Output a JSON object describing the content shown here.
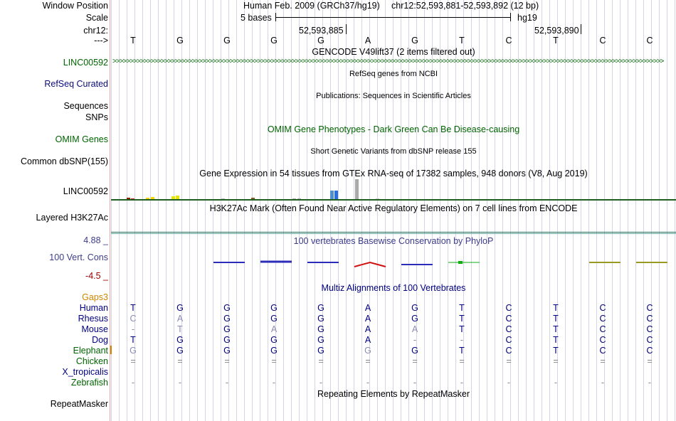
{
  "labels": {
    "window_position": "Window Position",
    "scale": "Scale",
    "chrom": "chr12:",
    "strand": "--->",
    "gencode_track": "LINC00592",
    "refseq": "RefSeq Curated",
    "sequences": "Sequences",
    "snps": "SNPs",
    "omim": "OMIM Genes",
    "dbsnp": "Common dbSNP(155)",
    "gtex": "LINC00592",
    "h3k27ac": "Layered H3K27Ac",
    "cons_max": "4.88 _",
    "cons": "100 Vert. Cons",
    "cons_min": "-4.5 _",
    "gaps": "Gaps3"
  },
  "header": {
    "assembly": "Human Feb. 2009 (GRCh37/hg19)",
    "position": "chr12:52,593,881-52,593,892 (12 bp)",
    "scale_text": "5 bases",
    "scale_db": "hg19",
    "coord1": "52,593,885",
    "coord2": "52,593,890"
  },
  "reference_bases": [
    "T",
    "G",
    "G",
    "G",
    "G",
    "A",
    "G",
    "T",
    "C",
    "T",
    "C",
    "C"
  ],
  "tracks": {
    "gencode": "GENCODE V49lift37 (2 items filtered out)",
    "refseq": "RefSeq genes from NCBI",
    "publications": "Publications: Sequences in Scientific Articles",
    "omim": "OMIM Gene Phenotypes - Dark Green Can Be Disease-causing",
    "dbsnp": "Short Genetic Variants from dbSNP release 155",
    "gtex": "Gene Expression in 54 tissues from GTEx RNA-seq of 17382 samples, 948 donors (V8, Aug 2019)",
    "h3k27ac": "H3K27Ac Mark (Often Found Near Active Regulatory Elements) on 7 cell lines from ENCODE",
    "phylop": "100 vertebrates Basewise Conservation by PhyloP",
    "multiz": "Multiz Alignments of 100 Vertebrates",
    "repeatmasker": "Repeating Elements by RepeatMasker",
    "repeatmasker_label": "RepeatMasker"
  },
  "gtex_bars": [
    {
      "tissue_color": "#8b2500",
      "value": 2
    },
    {
      "tissue_color": "#c1272d",
      "value": 1
    },
    {
      "tissue_color": "#ffd700",
      "value": 2
    },
    {
      "tissue_color": "#ffd700",
      "value": 3
    },
    {
      "tissue_color": "#e6e600",
      "value": 4
    },
    {
      "tissue_color": "#e6e600",
      "value": 5
    },
    {
      "tissue_color": "#bbbbbb",
      "value": 1
    },
    {
      "tissue_color": "#8b5a2b",
      "value": 2
    },
    {
      "tissue_color": "#aaaaaa",
      "value": 1
    },
    {
      "tissue_color": "#aaaaaa",
      "value": 1
    },
    {
      "tissue_color": "#4f8fcf",
      "value": 11
    },
    {
      "tissue_color": "#2b6fdf",
      "value": 11
    },
    {
      "tissue_color": "#aaaaaa",
      "value": 26
    },
    {
      "tissue_color": "#cccccc",
      "value": 1
    }
  ],
  "alignment": [
    {
      "species": "Human",
      "color": "#000080",
      "bases": [
        "T",
        "G",
        "G",
        "G",
        "G",
        "A",
        "G",
        "T",
        "C",
        "T",
        "C",
        "C"
      ]
    },
    {
      "species": "Rhesus",
      "color": "#000080",
      "bases": [
        "C",
        "A",
        "G",
        "G",
        "G",
        "A",
        "G",
        "T",
        "C",
        "T",
        "C",
        "C"
      ]
    },
    {
      "species": "Mouse",
      "color": "#000080",
      "bases": [
        "-",
        "T",
        "G",
        "A",
        "G",
        "A",
        "A",
        "T",
        "C",
        "T",
        "C",
        "C"
      ]
    },
    {
      "species": "Dog",
      "color": "#000080",
      "bases": [
        "T",
        "G",
        "G",
        "G",
        "G",
        "A",
        "-",
        "-",
        "C",
        "T",
        "C",
        "C"
      ]
    },
    {
      "species": "Elephant",
      "color": "#006400",
      "bases": [
        "G",
        "G",
        "G",
        "G",
        "G",
        "G",
        "G",
        "T",
        "C",
        "T",
        "C",
        "C"
      ]
    },
    {
      "species": "Chicken",
      "color": "#006400",
      "bases": [
        "=",
        "=",
        "=",
        "=",
        "=",
        "=",
        "=",
        "=",
        "=",
        "=",
        "=",
        "="
      ]
    },
    {
      "species": "X_tropicalis",
      "color": "#000080",
      "bases": [
        "",
        "",
        "",
        "",
        "",
        "",
        "",
        "",
        "",
        "",
        "",
        ""
      ]
    },
    {
      "species": "Zebrafish",
      "color": "#006400",
      "bases": [
        "-",
        "-",
        "-",
        "-",
        "-",
        "-",
        "-",
        "-",
        "-",
        "-",
        "-",
        "-"
      ]
    }
  ],
  "colors": {
    "gencode": "#006400",
    "refseq": "#0c0c78",
    "omim": "#006400",
    "phylop": "#3c3c8c",
    "cons_min": "#a00000",
    "gaps": "#d08400"
  }
}
